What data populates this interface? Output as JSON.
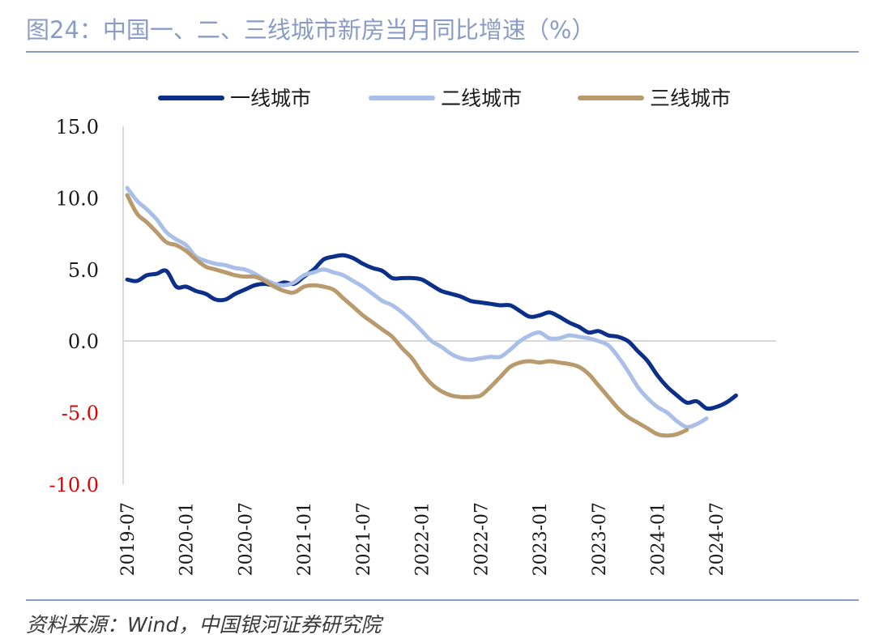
{
  "header": {
    "title": "图24：中国一、二、三线城市新房当月同比增速（%）"
  },
  "footer": {
    "source": "资料来源：Wind，中国银河证券研究院"
  },
  "chart_data": {
    "type": "line",
    "ylim": [
      -10,
      15
    ],
    "yticks": [
      "15.0",
      "10.0",
      "5.0",
      "0.0",
      "-5.0",
      "-10.0"
    ],
    "ytick_values": [
      15,
      10,
      5,
      0,
      -5,
      -10
    ],
    "xticks": [
      "2019-07",
      "2020-01",
      "2020-07",
      "2021-01",
      "2021-07",
      "2022-01",
      "2022-07",
      "2023-01",
      "2023-07",
      "2024-01",
      "2024-07"
    ],
    "legend_position": "top",
    "grid": false,
    "series": [
      {
        "name": "一线城市",
        "color": "#0c2f8a",
        "values": [
          4.3,
          4.2,
          4.6,
          4.7,
          4.9,
          3.8,
          3.8,
          3.5,
          3.3,
          2.9,
          2.9,
          3.3,
          3.6,
          3.9,
          4.0,
          3.9,
          4.1,
          4.0,
          4.5,
          5.0,
          5.7,
          5.9,
          6.0,
          5.8,
          5.4,
          5.1,
          4.9,
          4.4,
          4.4,
          4.4,
          4.3,
          3.9,
          3.5,
          3.3,
          3.1,
          2.8,
          2.7,
          2.6,
          2.5,
          2.5,
          2.1,
          1.7,
          1.8,
          2.0,
          1.7,
          1.3,
          1.0,
          0.6,
          0.7,
          0.4,
          0.3,
          0.0,
          -0.7,
          -1.4,
          -2.4,
          -3.2,
          -3.8,
          -4.3,
          -4.2,
          -4.7,
          -4.6,
          -4.3,
          -3.8
        ]
      },
      {
        "name": "二线城市",
        "color": "#a9bfe8",
        "values": [
          10.7,
          9.8,
          9.2,
          8.5,
          7.6,
          7.1,
          6.7,
          5.9,
          5.6,
          5.4,
          5.3,
          5.1,
          5.0,
          4.7,
          4.3,
          4.0,
          3.9,
          4.1,
          4.6,
          4.8,
          5.0,
          4.8,
          4.6,
          4.2,
          3.8,
          3.3,
          2.8,
          2.5,
          2.0,
          1.4,
          0.7,
          0.0,
          -0.4,
          -0.9,
          -1.2,
          -1.3,
          -1.2,
          -1.1,
          -1.1,
          -0.6,
          0.0,
          0.4,
          0.6,
          0.2,
          0.2,
          0.4,
          0.3,
          0.2,
          0.0,
          -0.3,
          -1.1,
          -2.1,
          -3.2,
          -4.0,
          -4.6,
          -5.0,
          -5.6,
          -6.0,
          -5.8,
          -5.4
        ]
      },
      {
        "name": "三线城市",
        "color": "#b89a6c",
        "values": [
          10.2,
          8.9,
          8.3,
          7.6,
          6.9,
          6.7,
          6.3,
          5.7,
          5.2,
          5.0,
          4.8,
          4.6,
          4.5,
          4.5,
          4.2,
          3.8,
          3.5,
          3.4,
          3.8,
          3.9,
          3.8,
          3.6,
          3.0,
          2.4,
          1.8,
          1.3,
          0.8,
          0.3,
          -0.5,
          -1.2,
          -2.2,
          -3.0,
          -3.5,
          -3.8,
          -3.9,
          -3.9,
          -3.8,
          -3.2,
          -2.5,
          -1.8,
          -1.5,
          -1.4,
          -1.5,
          -1.4,
          -1.5,
          -1.6,
          -1.8,
          -2.3,
          -3.1,
          -3.9,
          -4.7,
          -5.3,
          -5.7,
          -6.1,
          -6.5,
          -6.6,
          -6.5,
          -6.2
        ]
      }
    ]
  }
}
